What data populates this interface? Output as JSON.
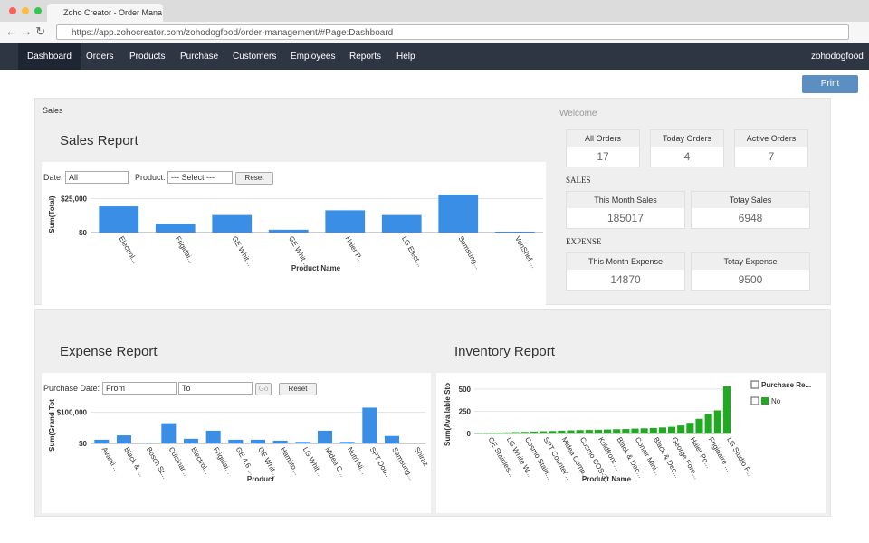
{
  "browser": {
    "tab_title": "Zoho Creator - Order Mana",
    "url": "https://app.zohocreator.com/zohodogfood/order-management/#Page:Dashboard"
  },
  "nav": {
    "items": [
      "Dashboard",
      "Orders",
      "Products",
      "Purchase",
      "Customers",
      "Employees",
      "Reports",
      "Help"
    ],
    "user": "zohodogfood"
  },
  "print_button": "Print",
  "sales_section": {
    "label": "Sales"
  },
  "sales_filters": {
    "date_label": "Date:",
    "date_value": "All",
    "product_label": "Product:",
    "product_value": "--- Select ---",
    "reset": "Reset"
  },
  "expense_filters": {
    "date_label": "Purchase Date:",
    "from": "From",
    "to": "To",
    "go": "Go",
    "reset": "Reset"
  },
  "welcome": {
    "title": "Welcome",
    "orders": [
      {
        "label": "All Orders",
        "value": 17
      },
      {
        "label": "Today Orders",
        "value": 4
      },
      {
        "label": "Active Orders",
        "value": 7
      }
    ],
    "sales_heading": "SALES",
    "sales": [
      {
        "label": "This Month Sales",
        "value": 185017
      },
      {
        "label": "Totay Sales",
        "value": 6948
      }
    ],
    "expense_heading": "EXPENSE",
    "expenses": [
      {
        "label": "This Month Expense",
        "value": 14870
      },
      {
        "label": "Totay Expense",
        "value": 9500
      }
    ]
  },
  "chart_data": [
    {
      "type": "bar",
      "title": "Sales Report",
      "x_label": "Product Name",
      "y_label": "Sum(Total)",
      "categories": [
        "Electrol...",
        "Frigidai...",
        "GE Whit...",
        "GE Whit...",
        "Haier P...",
        "LG Elect...",
        "Samsung...",
        "VonShef ..."
      ],
      "values": [
        19300,
        6400,
        12900,
        2100,
        16400,
        12900,
        27900,
        700
      ],
      "color": "#3a8ee6",
      "ylim": [
        0,
        30000
      ],
      "yticks": [
        {
          "value": 0,
          "label": "$0"
        },
        {
          "value": 25000,
          "label": "$25,000"
        }
      ],
      "grid": true
    },
    {
      "type": "bar",
      "title": "Expense Report",
      "x_label": "Product",
      "y_label": "Sum(Grand Tot",
      "categories": [
        "Avanti ...",
        "Black & ...",
        "Bosch St...",
        "Cuisinar...",
        "Electrol...",
        "Frigidai...",
        "GE 4.6 ...",
        "GE Whit...",
        "Hamilto...",
        "LG Whit...",
        "Midea C...",
        "Nutri Ni...",
        "SPT Dou...",
        "Samsung...",
        "Shiraz"
      ],
      "values": [
        12000,
        26000,
        1000,
        65000,
        15000,
        41000,
        12000,
        12000,
        9000,
        5000,
        41000,
        5000,
        115000,
        24000,
        0
      ],
      "color": "#3a8ee6",
      "ylim": [
        0,
        125000
      ],
      "yticks": [
        {
          "value": 0,
          "label": "$0"
        },
        {
          "value": 100000,
          "label": "$100,000"
        }
      ],
      "grid": true
    },
    {
      "type": "bar",
      "title": "Inventory Report",
      "x_label": "Product Name",
      "y_label": "Sum(Available Sto",
      "legend_title": "Purchase Re...",
      "categories": [
        null,
        "GE Stainles...",
        null,
        "LG White W...",
        null,
        "Cosmo Stain...",
        null,
        "SPT Counter ...",
        null,
        "Midea Comp...",
        null,
        "Cosmo COS-3...",
        null,
        "Koldfront ...",
        null,
        "Black & Dec...",
        null,
        "Conair Mini...",
        null,
        "Black & Dec...",
        null,
        "George Fore...",
        null,
        "Haier Po...",
        null,
        "Frigidaire ...",
        null,
        "LG Studio F..."
      ],
      "series": [
        {
          "name": "No",
          "color": "#22a822",
          "values": [
            5,
            8,
            10,
            12,
            15,
            18,
            22,
            25,
            28,
            32,
            35,
            38,
            40,
            42,
            45,
            48,
            50,
            55,
            58,
            62,
            68,
            75,
            90,
            120,
            165,
            220,
            260,
            530
          ]
        }
      ],
      "ylim": [
        0,
        580
      ],
      "yticks": [
        0,
        250,
        500
      ],
      "grid": true
    }
  ]
}
